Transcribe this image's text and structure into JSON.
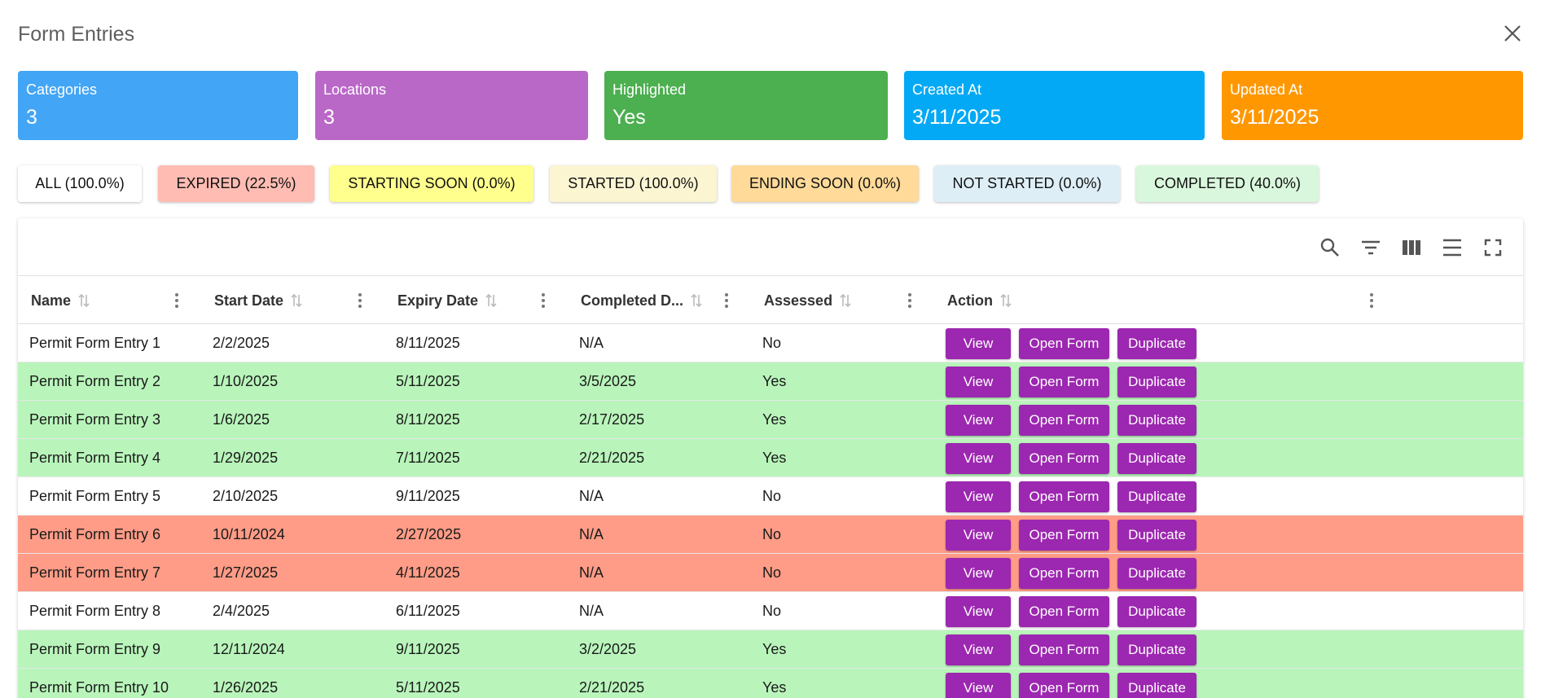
{
  "dialog": {
    "title": "Form Entries"
  },
  "stats": [
    {
      "label": "Categories",
      "value": "3",
      "color": "#42a5f5"
    },
    {
      "label": "Locations",
      "value": "3",
      "color": "#ba68c8"
    },
    {
      "label": "Highlighted",
      "value": "Yes",
      "color": "#4caf50"
    },
    {
      "label": "Created At",
      "value": "3/11/2025",
      "color": "#03a9f4"
    },
    {
      "label": "Updated At",
      "value": "3/11/2025",
      "color": "#ff9800"
    }
  ],
  "filters": [
    {
      "label": "ALL (100.0%)",
      "color": "#ffffff"
    },
    {
      "label": "EXPIRED (22.5%)",
      "color": "#ffbcb3"
    },
    {
      "label": "STARTING SOON (0.0%)",
      "color": "#ffff8d"
    },
    {
      "label": "STARTED (100.0%)",
      "color": "#fbf5d2"
    },
    {
      "label": "ENDING SOON (0.0%)",
      "color": "#ffda99"
    },
    {
      "label": "NOT STARTED (0.0%)",
      "color": "#deeef6"
    },
    {
      "label": "COMPLETED (40.0%)",
      "color": "#d9f7dc"
    }
  ],
  "toolbar": {
    "icons": [
      "search-icon",
      "filter-icon",
      "columns-icon",
      "density-icon",
      "fullscreen-icon"
    ]
  },
  "table": {
    "columns": [
      "Name",
      "Start Date",
      "Expiry Date",
      "Completed D...",
      "Assessed",
      "Action"
    ],
    "actions": [
      "View",
      "Open Form",
      "Duplicate"
    ],
    "row_colors": {
      "none": "#ffffff",
      "completed": "#b9f5bb",
      "expired": "#fe9c87"
    },
    "rows": [
      {
        "name": "Permit Form Entry 1",
        "start": "2/2/2025",
        "expiry": "8/11/2025",
        "completed": "N/A",
        "assessed": "No",
        "status": "none"
      },
      {
        "name": "Permit Form Entry 2",
        "start": "1/10/2025",
        "expiry": "5/11/2025",
        "completed": "3/5/2025",
        "assessed": "Yes",
        "status": "completed"
      },
      {
        "name": "Permit Form Entry 3",
        "start": "1/6/2025",
        "expiry": "8/11/2025",
        "completed": "2/17/2025",
        "assessed": "Yes",
        "status": "completed"
      },
      {
        "name": "Permit Form Entry 4",
        "start": "1/29/2025",
        "expiry": "7/11/2025",
        "completed": "2/21/2025",
        "assessed": "Yes",
        "status": "completed"
      },
      {
        "name": "Permit Form Entry 5",
        "start": "2/10/2025",
        "expiry": "9/11/2025",
        "completed": "N/A",
        "assessed": "No",
        "status": "none"
      },
      {
        "name": "Permit Form Entry 6",
        "start": "10/11/2024",
        "expiry": "2/27/2025",
        "completed": "N/A",
        "assessed": "No",
        "status": "expired"
      },
      {
        "name": "Permit Form Entry 7",
        "start": "1/27/2025",
        "expiry": "4/11/2025",
        "completed": "N/A",
        "assessed": "No",
        "status": "expired"
      },
      {
        "name": "Permit Form Entry 8",
        "start": "2/4/2025",
        "expiry": "6/11/2025",
        "completed": "N/A",
        "assessed": "No",
        "status": "none"
      },
      {
        "name": "Permit Form Entry 9",
        "start": "12/11/2024",
        "expiry": "9/11/2025",
        "completed": "3/2/2025",
        "assessed": "Yes",
        "status": "completed"
      },
      {
        "name": "Permit Form Entry 10",
        "start": "1/26/2025",
        "expiry": "5/11/2025",
        "completed": "2/21/2025",
        "assessed": "Yes",
        "status": "completed"
      }
    ]
  }
}
